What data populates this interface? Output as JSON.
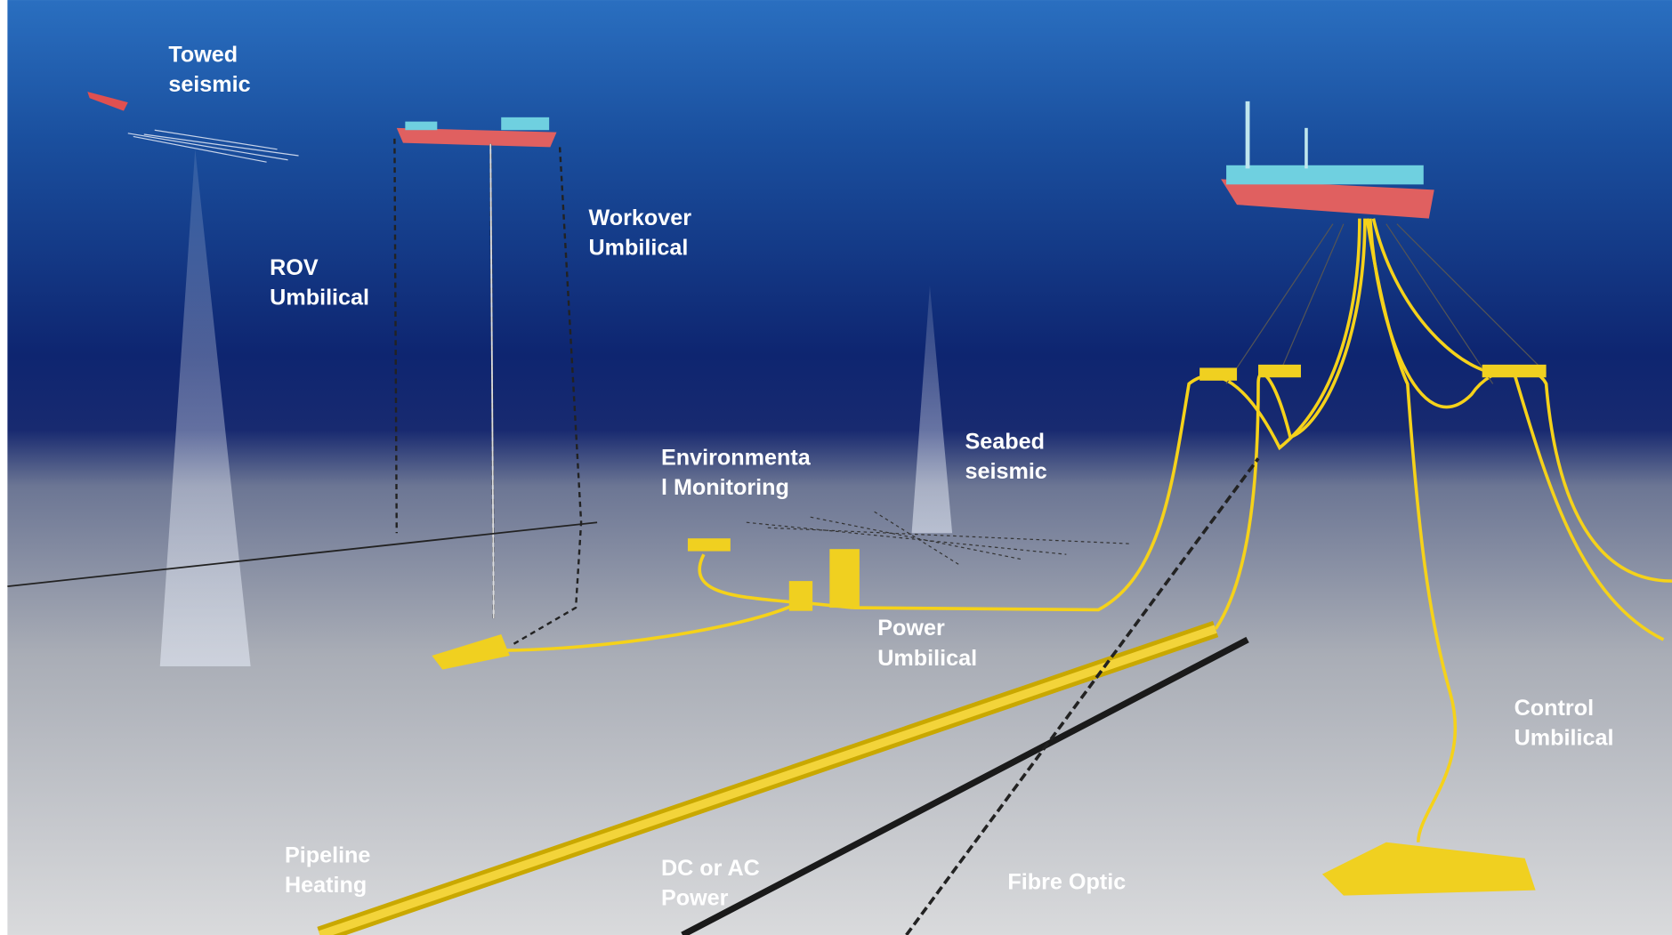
{
  "labels": [
    {
      "lines": [
        "Towed",
        "seismic"
      ]
    },
    {
      "lines": [
        "ROV",
        "Umbilical"
      ]
    },
    {
      "lines": [
        "Workover",
        "Umbilical"
      ]
    },
    {
      "lines": [
        "Environmenta",
        "l Monitoring"
      ]
    },
    {
      "lines": [
        "Seabed",
        "seismic"
      ]
    },
    {
      "lines": [
        "Power",
        "Umbilical"
      ]
    },
    {
      "lines": [
        "Control",
        "Umbilical"
      ]
    },
    {
      "lines": [
        "Pipeline",
        "Heating"
      ]
    },
    {
      "lines": [
        "DC or AC",
        "Power"
      ]
    },
    {
      "lines": [
        "Fibre Optic"
      ]
    }
  ]
}
